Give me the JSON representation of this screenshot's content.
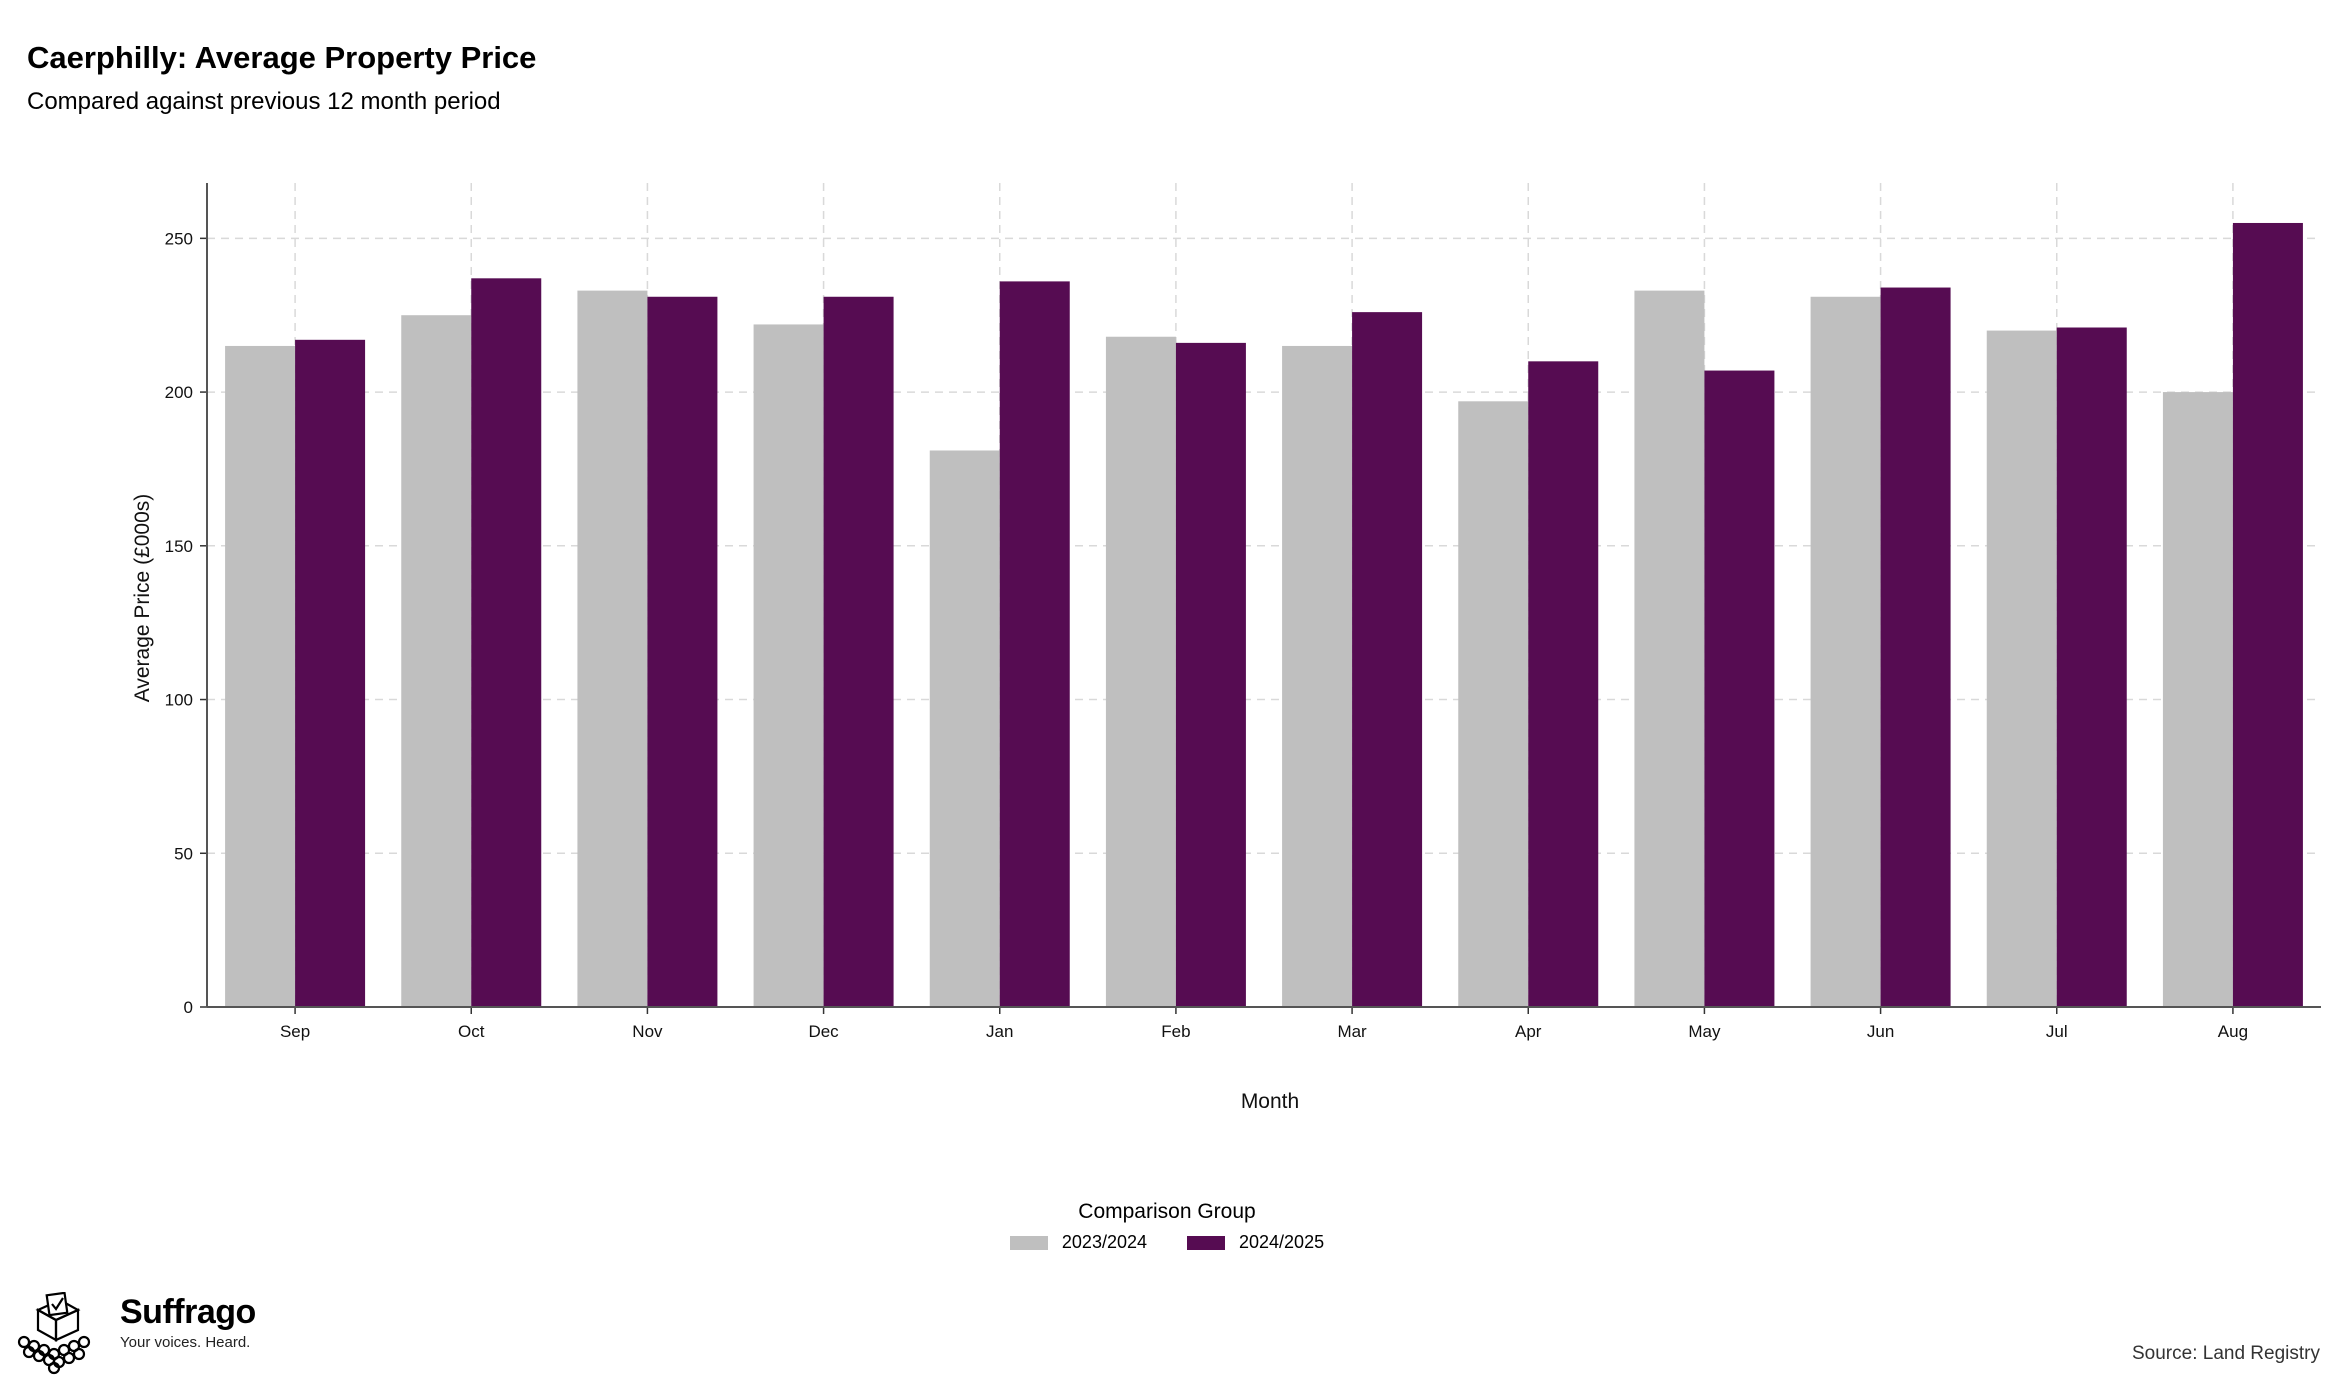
{
  "chart_data": {
    "type": "bar",
    "title": "Caerphilly: Average Property Price",
    "subtitle": "Compared against previous 12 month period",
    "xlabel": "Month",
    "ylabel": "Average Price (£000s)",
    "categories": [
      "Sep",
      "Oct",
      "Nov",
      "Dec",
      "Jan",
      "Feb",
      "Mar",
      "Apr",
      "May",
      "Jun",
      "Jul",
      "Aug"
    ],
    "series": [
      {
        "name": "2023/2024",
        "color": "#bfbfbf",
        "values": [
          215,
          225,
          233,
          222,
          181,
          218,
          215,
          197,
          233,
          231,
          220,
          200
        ]
      },
      {
        "name": "2024/2025",
        "color": "#560c52",
        "values": [
          217,
          237,
          231,
          231,
          236,
          216,
          226,
          210,
          207,
          234,
          221,
          255
        ]
      }
    ],
    "ylim": [
      0,
      268
    ],
    "yticks": [
      0,
      50,
      100,
      150,
      200,
      250
    ],
    "grid": true,
    "legend_title": "Comparison Group",
    "legend_position": "bottom"
  },
  "branding": {
    "name": "Suffrago",
    "tagline": "Your voices. Heard.",
    "logo_icon": "ballot-box-icon"
  },
  "source": "Source: Land Registry"
}
